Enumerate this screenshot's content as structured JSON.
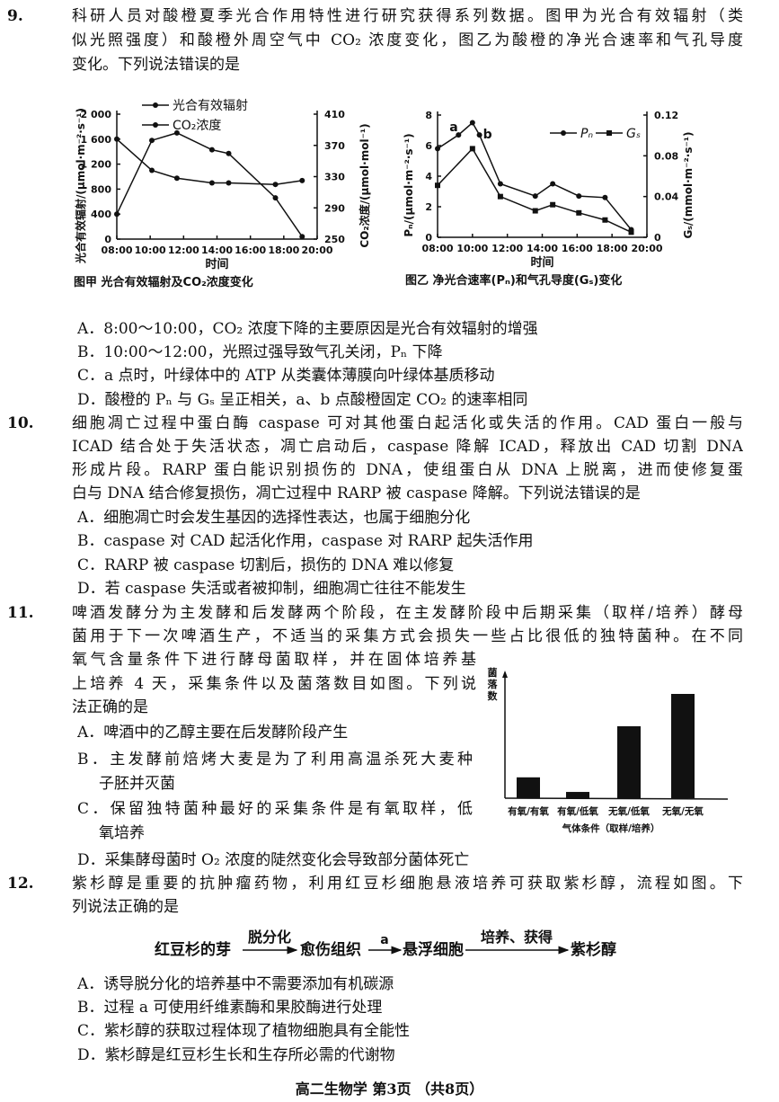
{
  "q9": {
    "number": "9.",
    "stem": [
      "科研人员对酸橙夏季光合作用特性进行研究获得系列数据。图甲为光合有效辐射（类",
      "似光照强度）和酸橙外周空气中 CO₂ 浓度变化，图乙为酸橙的净光合速率和气孔导度",
      "变化。下列说法错误的是"
    ],
    "options": [
      "A．8:00～10:00，CO₂ 浓度下降的主要原因是光合有效辐射的增强",
      "B．10:00～12:00，光照过强导致气孔关闭，Pₙ 下降",
      "C．a 点时，叶绿体中的 ATP 从类囊体薄膜向叶绿体基质移动",
      "D．酸橙的 Pₙ 与 Gₛ 呈正相关，a、b 点酸橙固定 CO₂ 的速率相同"
    ]
  },
  "q10": {
    "number": "10.",
    "stem": [
      "细胞凋亡过程中蛋白酶 caspase 可对其他蛋白起活化或失活的作用。CAD 蛋白一般与",
      "ICAD 结合处于失活状态，凋亡启动后，caspase 降解 ICAD，释放出 CAD 切割 DNA",
      "形成片段。RARP 蛋白能识别损伤的 DNA，使组蛋白从 DNA 上脱离，进而使修复蛋",
      "白与 DNA 结合修复损伤，凋亡过程中 RARP 被 caspase 降解。下列说法错误的是"
    ],
    "options": [
      "A．细胞凋亡时会发生基因的选择性表达，也属于细胞分化",
      "B．caspase 对 CAD 起活化作用，caspase 对 RARP 起失活作用",
      "C．RARP 被 caspase 切割后，损伤的 DNA 难以修复",
      "D．若 caspase 失活或者被抑制，细胞凋亡往往不能发生"
    ]
  },
  "q11": {
    "number": "11.",
    "stem": [
      "啤酒发酵分为主发酵和后发酵两个阶段，在主发酵阶段中后期采集（取样/培养）酵母",
      "菌用于下一次啤酒生产，不适当的采集方式会损失一些占比很低的独特菌种。在不同",
      "氧气含量条件下进行酵母菌取样，并在固体培养基",
      "上培养 4 天，采集条件以及菌落数目如图。下列说",
      "法正确的是"
    ],
    "options": [
      "A．啤酒中的乙醇主要在后发酵阶段产生",
      "B．主发酵前焙烤大麦是为了利用高温杀死大麦种",
      "子胚并灭菌",
      "C．保留独特菌种最好的采集条件是有氧取样，低",
      "氧培养",
      "D．采集酵母菌时 O₂ 浓度的陡然变化会导致部分菌体死亡"
    ]
  },
  "q12": {
    "number": "12.",
    "stem": [
      "紫杉醇是重要的抗肿瘤药物，利用红豆杉细胞悬液培养可获取紫杉醇，流程如图。下",
      "列说法正确的是"
    ],
    "flow": {
      "s1": "红豆杉的芽",
      "a1": "脱分化",
      "s2": "愈伤组织",
      "a2": "a",
      "s3": "悬浮细胞",
      "a3": "培养、获得",
      "s4": "紫杉醇"
    },
    "options": [
      "A．诱导脱分化的培养基中不需要添加有机碳源",
      "B．过程 a 可使用纤维素酶和果胶酶进行处理",
      "C．紫杉醇的获取过程体现了植物细胞具有全能性",
      "D．紫杉醇是红豆杉生长和生存所必需的代谢物"
    ]
  },
  "chart_data": [
    {
      "type": "line",
      "title": "图甲  光合有效辐射及CO₂浓度变化",
      "xlabel": "时间",
      "ylabel": "光合有效辐射/(μmol·m⁻²·s⁻¹)",
      "y2label": "CO₂浓度/(μmol·mol⁻¹)",
      "xticks": [
        "08:00",
        "10:00",
        "12:00",
        "14:00",
        "16:00",
        "18:00",
        "20:00"
      ],
      "xlim": [
        8,
        20
      ],
      "ylim": [
        0,
        2000
      ],
      "yticks": [
        "0",
        "400",
        "800",
        "1 200",
        "1 600",
        "2 000"
      ],
      "y2lim": [
        250,
        410
      ],
      "y2ticks": [
        "250",
        "290",
        "330",
        "370",
        "410"
      ],
      "legend": "top-center",
      "series": [
        {
          "name": "光合有效辐射",
          "axis": "left",
          "x": [
            8,
            10.1,
            11.6,
            13.7,
            14.7,
            17.5,
            19.1
          ],
          "values": [
            400,
            1580,
            1700,
            1430,
            1370,
            660,
            40
          ]
        },
        {
          "name": "CO₂浓度",
          "axis": "right",
          "x": [
            8,
            10.1,
            11.6,
            13.7,
            14.7,
            17.5,
            19.1
          ],
          "values": [
            378,
            338,
            328,
            322,
            322,
            320,
            325
          ]
        }
      ]
    },
    {
      "type": "line",
      "title": "图乙  净光合速率(Pₙ)和气孔导度(Gₛ)变化",
      "xlabel": "时间",
      "ylabel": "Pₙ/(μmol·m⁻²·s⁻¹)",
      "y2label": "Gₛ/(mmol·m⁻²·s⁻¹)",
      "xticks": [
        "08:00",
        "10:00",
        "12:00",
        "14:00",
        "16:00",
        "18:00",
        "20:00"
      ],
      "xlim": [
        8,
        20
      ],
      "ylim": [
        0,
        8
      ],
      "yticks": [
        "0",
        "2",
        "4",
        "6",
        "8"
      ],
      "y2lim": [
        0,
        0.12
      ],
      "y2ticks": [
        "0",
        "0.04",
        "0.08",
        "0.12"
      ],
      "legend": "top-right",
      "annotations": [
        {
          "text": "a",
          "x": 9.2,
          "y": 6.7
        },
        {
          "text": "b",
          "x": 10.4,
          "y": 6.7
        }
      ],
      "series": [
        {
          "name": "Pₙ",
          "axis": "left",
          "marker": "circle",
          "x": [
            8,
            9.2,
            10,
            10.4,
            11.6,
            13.6,
            14.6,
            16.1,
            17.6,
            19.1
          ],
          "values": [
            5.8,
            6.7,
            7.5,
            6.7,
            3.5,
            2.7,
            3.5,
            2.7,
            2.6,
            0.5
          ]
        },
        {
          "name": "Gₛ",
          "axis": "right",
          "marker": "square",
          "x": [
            8,
            10,
            11.6,
            13.6,
            14.6,
            16.1,
            17.6,
            19.1
          ],
          "values": [
            0.051,
            0.087,
            0.04,
            0.026,
            0.032,
            0.024,
            0.017,
            0.005
          ]
        }
      ]
    },
    {
      "type": "bar",
      "ylabel": "菌落数",
      "xlabel": "气体条件（取样/培养）",
      "categories": [
        "有氧/有氧",
        "有氧/低氧",
        "无氧/低氧",
        "无氧/无氧"
      ],
      "values": [
        0.2,
        0.06,
        0.69,
        1.0
      ],
      "color": "#111111"
    }
  ],
  "footer": "高二生物学  第3页  （共8页）"
}
